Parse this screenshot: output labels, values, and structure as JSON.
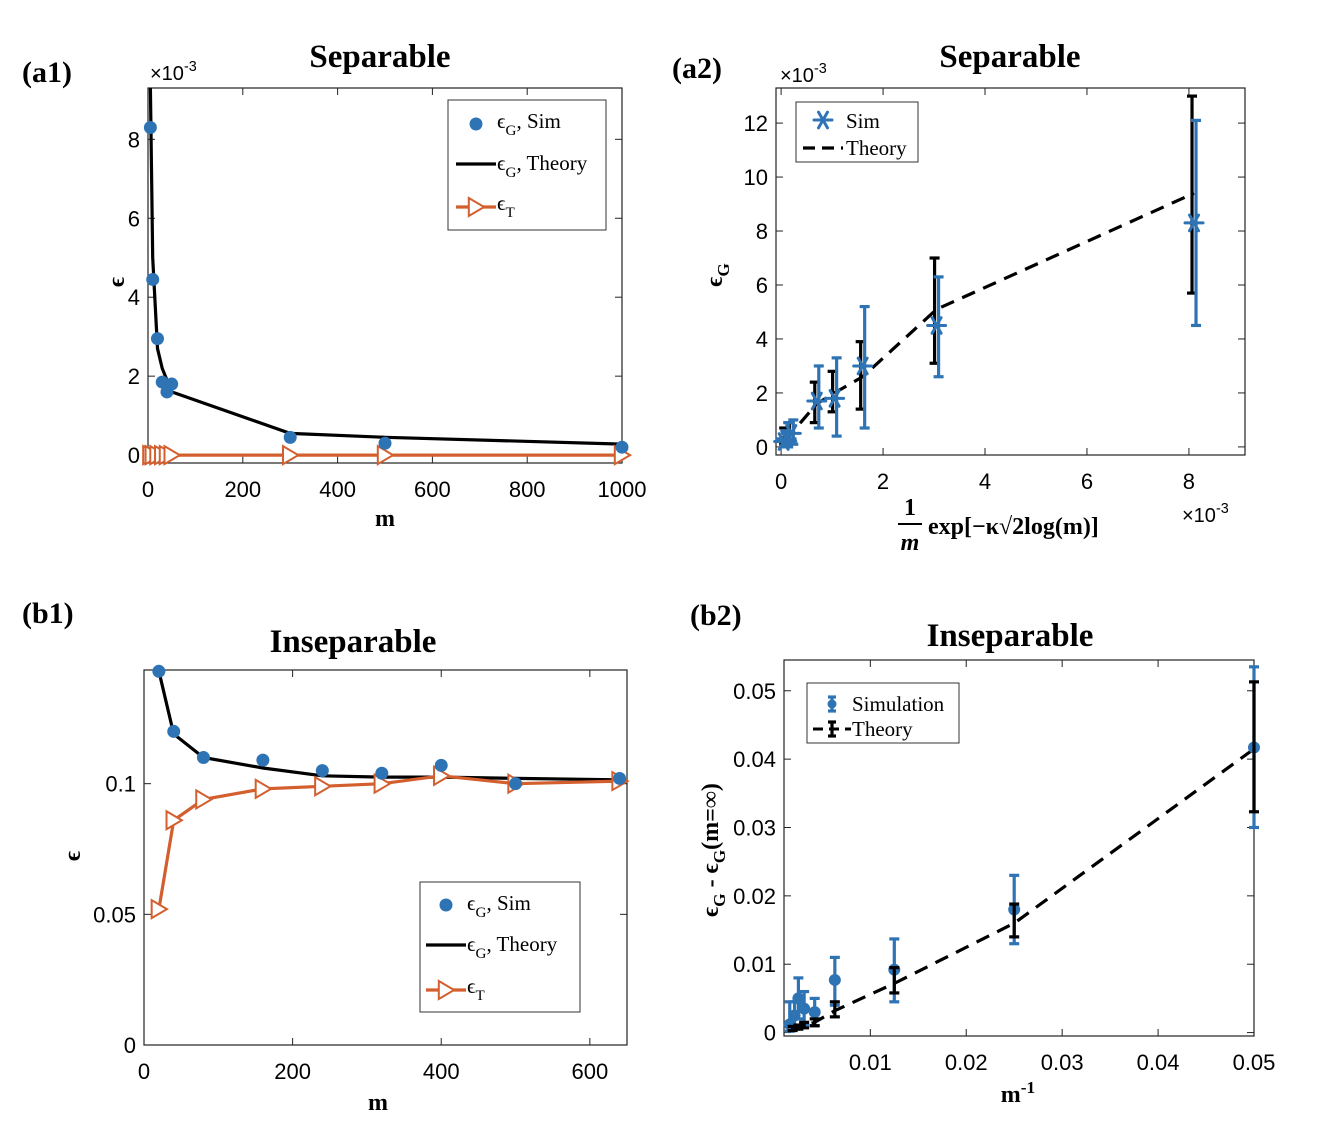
{
  "chart_data": [
    {
      "id": "a1",
      "panel_label": "(a1)",
      "title": "Separable",
      "type": "line",
      "xlabel": "m",
      "ylabel": "ϵ",
      "xlim": [
        0,
        1000
      ],
      "ylim": [
        -0.0002,
        0.0093
      ],
      "x_ticks": [
        "0",
        "200",
        "400",
        "600",
        "800",
        "1000"
      ],
      "y_ticks": [
        "0",
        "2",
        "4",
        "6",
        "8"
      ],
      "y_multiplier": "×10-3",
      "legend": [
        "ϵG, Sim",
        "ϵG, Theory",
        "ϵT"
      ],
      "sim": {
        "x": [
          5,
          10,
          20,
          30,
          40,
          50,
          300,
          500,
          1000
        ],
        "y": [
          0.0083,
          0.00445,
          0.00295,
          0.00185,
          0.0016,
          0.0018,
          0.00045,
          0.0003,
          0.0002
        ]
      },
      "theory": {
        "x": [
          5,
          10,
          20,
          30,
          50,
          300,
          500,
          1000
        ],
        "y": [
          0.0093,
          0.005,
          0.0027,
          0.0022,
          0.0016,
          0.00055,
          0.00045,
          0.00028
        ]
      },
      "train": {
        "x": [
          5,
          10,
          20,
          30,
          40,
          50,
          300,
          500,
          1000
        ],
        "y": [
          0,
          0,
          0,
          0,
          0,
          0,
          0,
          0,
          0
        ]
      }
    },
    {
      "id": "a2",
      "panel_label": "(a2)",
      "title": "Separable",
      "type": "scatter",
      "xlabel_num": "1",
      "xlabel_den": "m",
      "xlabel_expr": "exp[−κ√2log(m)]",
      "ylabel": "ϵG",
      "xlim": [
        -0.0001,
        0.0091
      ],
      "ylim": [
        -0.0003,
        0.0133
      ],
      "x_ticks": [
        "0",
        "2",
        "4",
        "6",
        "8"
      ],
      "y_ticks": [
        "0",
        "2",
        "4",
        "6",
        "8",
        "10",
        "12"
      ],
      "x_multiplier": "×10-3",
      "y_multiplier": "×10-3",
      "legend": [
        "Sim",
        "Theory"
      ],
      "theory_line": {
        "x": [
          5e-05,
          0.0001,
          0.0002,
          0.0007,
          0.00105,
          0.0016,
          0.00305,
          0.0081
        ],
        "y": [
          0.0003,
          0.0004,
          0.0005,
          0.0016,
          0.002,
          0.0026,
          0.0051,
          0.0094
        ]
      },
      "theory_err": [
        {
          "x": 0.0001,
          "lo": 0.0001,
          "hi": 0.0007
        },
        {
          "x": 0.0002,
          "lo": 0.0002,
          "hi": 0.0009
        },
        {
          "x": 0.0007,
          "lo": 0.0009,
          "hi": 0.0024
        },
        {
          "x": 0.00105,
          "lo": 0.0013,
          "hi": 0.0028
        },
        {
          "x": 0.0016,
          "lo": 0.0014,
          "hi": 0.0039
        },
        {
          "x": 0.00305,
          "lo": 0.0031,
          "hi": 0.007
        },
        {
          "x": 0.0081,
          "lo": 0.0057,
          "hi": 0.013
        }
      ],
      "sim_points": [
        {
          "x": 5e-05,
          "y": 0.0002,
          "lo": 0.0,
          "hi": 0.0006
        },
        {
          "x": 0.0001,
          "y": 0.0003,
          "lo": 0.0,
          "hi": 0.0009
        },
        {
          "x": 0.0002,
          "y": 0.0005,
          "lo": 0.0001,
          "hi": 0.001
        },
        {
          "x": 0.0007,
          "y": 0.0017,
          "lo": 0.0007,
          "hi": 0.003
        },
        {
          "x": 0.00105,
          "y": 0.0018,
          "lo": 0.0004,
          "hi": 0.0033
        },
        {
          "x": 0.0016,
          "y": 0.003,
          "lo": 0.0007,
          "hi": 0.0052
        },
        {
          "x": 0.00305,
          "y": 0.0045,
          "lo": 0.0026,
          "hi": 0.0063
        },
        {
          "x": 0.0081,
          "y": 0.0083,
          "lo": 0.0045,
          "hi": 0.0121
        }
      ]
    },
    {
      "id": "b1",
      "panel_label": "(b1)",
      "title": "Inseparable",
      "type": "line",
      "xlabel": "m",
      "ylabel": "ϵ",
      "xlim": [
        0,
        650
      ],
      "ylim": [
        0,
        0.1435
      ],
      "x_ticks": [
        "0",
        "200",
        "400",
        "600"
      ],
      "y_ticks": [
        "0",
        "0.05",
        "0.1"
      ],
      "legend": [
        "ϵG, Sim",
        "ϵG, Theory",
        "ϵT"
      ],
      "sim": {
        "x": [
          20,
          40,
          80,
          160,
          240,
          320,
          400,
          500,
          640
        ],
        "y": [
          0.143,
          0.12,
          0.11,
          0.109,
          0.105,
          0.104,
          0.107,
          0.1,
          0.102
        ]
      },
      "theory": {
        "x": [
          20,
          40,
          80,
          160,
          240,
          320,
          400,
          500,
          640
        ],
        "y": [
          0.143,
          0.119,
          0.11,
          0.106,
          0.103,
          0.1025,
          0.1025,
          0.102,
          0.1015
        ]
      },
      "train": {
        "x": [
          20,
          40,
          80,
          160,
          240,
          320,
          400,
          500,
          640
        ],
        "y": [
          0.052,
          0.086,
          0.094,
          0.098,
          0.099,
          0.1,
          0.103,
          0.1,
          0.101
        ]
      }
    },
    {
      "id": "b2",
      "panel_label": "(b2)",
      "title": "Inseparable",
      "type": "scatter",
      "xlabel": "m",
      "xlabel_sup": "-1",
      "ylabel": "ϵG - ϵG(m=∞)",
      "xlim": [
        0.001,
        0.05
      ],
      "ylim": [
        -0.0005,
        0.0545
      ],
      "x_ticks": [
        "0.01",
        "0.02",
        "0.03",
        "0.04",
        "0.05"
      ],
      "y_ticks": [
        "0",
        "0.01",
        "0.02",
        "0.03",
        "0.04",
        "0.05"
      ],
      "legend": [
        "Simulation",
        "Theory"
      ],
      "theory_line": {
        "x": [
          0.0016,
          0.0019,
          0.0025,
          0.0031,
          0.0042,
          0.0063,
          0.0125,
          0.025,
          0.05
        ],
        "y": [
          0.0003,
          0.0005,
          0.0008,
          0.001,
          0.0015,
          0.0032,
          0.0072,
          0.016,
          0.0415
        ]
      },
      "theory_err": [
        {
          "x": 0.0019,
          "lo": 0.0003,
          "hi": 0.0009
        },
        {
          "x": 0.0025,
          "lo": 0.0005,
          "hi": 0.0011
        },
        {
          "x": 0.0031,
          "lo": 0.0007,
          "hi": 0.0015
        },
        {
          "x": 0.0042,
          "lo": 0.001,
          "hi": 0.002
        },
        {
          "x": 0.0063,
          "lo": 0.0023,
          "hi": 0.0045
        },
        {
          "x": 0.0125,
          "lo": 0.0058,
          "hi": 0.0095
        },
        {
          "x": 0.025,
          "lo": 0.014,
          "hi": 0.0188
        },
        {
          "x": 0.05,
          "lo": 0.0323,
          "hi": 0.0513
        }
      ],
      "sim_points": [
        {
          "x": 0.0016,
          "y": 0.0012,
          "lo": 0.0002,
          "hi": 0.0045
        },
        {
          "x": 0.0021,
          "y": 0.0025,
          "lo": 0.0005,
          "hi": 0.0045
        },
        {
          "x": 0.0025,
          "y": 0.005,
          "lo": 0.002,
          "hi": 0.008
        },
        {
          "x": 0.0031,
          "y": 0.0035,
          "lo": 0.0012,
          "hi": 0.006
        },
        {
          "x": 0.0042,
          "y": 0.003,
          "lo": 0.001,
          "hi": 0.005
        },
        {
          "x": 0.0063,
          "y": 0.0077,
          "lo": 0.004,
          "hi": 0.011
        },
        {
          "x": 0.0125,
          "y": 0.0092,
          "lo": 0.0045,
          "hi": 0.0137
        },
        {
          "x": 0.025,
          "y": 0.018,
          "lo": 0.013,
          "hi": 0.023
        },
        {
          "x": 0.05,
          "y": 0.0417,
          "lo": 0.03,
          "hi": 0.0535
        }
      ]
    }
  ],
  "colors": {
    "sim": "#2e74b5",
    "theory": "#000000",
    "train": "#d35f2f"
  }
}
